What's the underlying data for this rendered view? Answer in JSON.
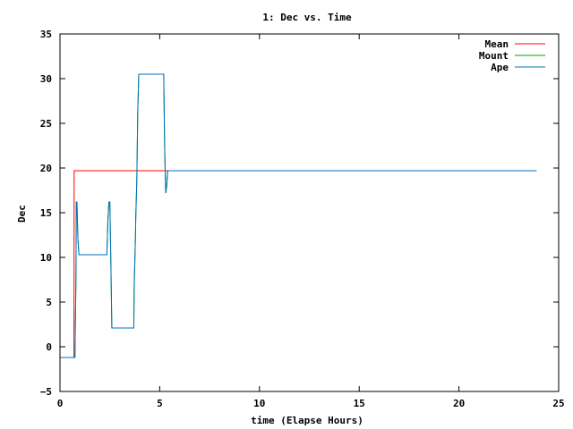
{
  "chart_data": {
    "type": "line",
    "title": "1: Dec vs. Time",
    "xlabel": "time (Elapse Hours)",
    "ylabel": "Dec",
    "xlim": [
      0,
      25
    ],
    "ylim": [
      -5,
      35
    ],
    "xticks": [
      0,
      5,
      10,
      15,
      20,
      25
    ],
    "yticks": [
      -5,
      0,
      5,
      10,
      15,
      20,
      25,
      30,
      35
    ],
    "grid": false,
    "legend_position": "top-right",
    "series": [
      {
        "name": "Mean",
        "color": "#ff0000",
        "x": [
          0,
          0.7,
          0.71,
          14.4
        ],
        "y": [
          -1.2,
          -1.2,
          19.7,
          19.7
        ]
      },
      {
        "name": "Mount",
        "color": "#00a000",
        "x": [
          0,
          0.75,
          0.8,
          0.82,
          0.85,
          0.9,
          0.95,
          1.0,
          2.35,
          2.4,
          2.45,
          2.5,
          2.55,
          2.6,
          2.7,
          3.7,
          3.72,
          3.78,
          3.8,
          3.85,
          3.9,
          3.95,
          4.0,
          5.2,
          5.22,
          5.25,
          5.3,
          5.35,
          5.4,
          5.5,
          14.4
        ],
        "y": [
          -1.2,
          -1.2,
          7.5,
          16.2,
          16.2,
          12.0,
          10.3,
          10.3,
          10.3,
          14.0,
          16.2,
          16.2,
          9.5,
          2.1,
          2.1,
          2.1,
          6.5,
          12.0,
          14.5,
          18.5,
          26.5,
          30.5,
          30.5,
          30.5,
          27.0,
          22.0,
          17.2,
          18.0,
          19.7,
          19.7,
          19.7
        ]
      },
      {
        "name": "Ape",
        "color": "#0072bd",
        "x": [
          0,
          0.75,
          0.8,
          0.82,
          0.85,
          0.9,
          0.95,
          1.0,
          2.35,
          2.4,
          2.45,
          2.5,
          2.55,
          2.6,
          2.7,
          3.7,
          3.72,
          3.78,
          3.8,
          3.85,
          3.9,
          3.95,
          4.0,
          5.2,
          5.22,
          5.25,
          5.3,
          5.35,
          5.4,
          5.5,
          23.9
        ],
        "y": [
          -1.2,
          -1.2,
          7.5,
          16.2,
          16.2,
          12.0,
          10.3,
          10.3,
          10.3,
          14.0,
          16.2,
          16.2,
          9.5,
          2.1,
          2.1,
          2.1,
          7.0,
          12.0,
          14.5,
          18.5,
          26.5,
          30.5,
          30.5,
          30.5,
          27.0,
          22.0,
          17.2,
          18.0,
          19.7,
          19.7,
          19.7
        ]
      }
    ]
  }
}
